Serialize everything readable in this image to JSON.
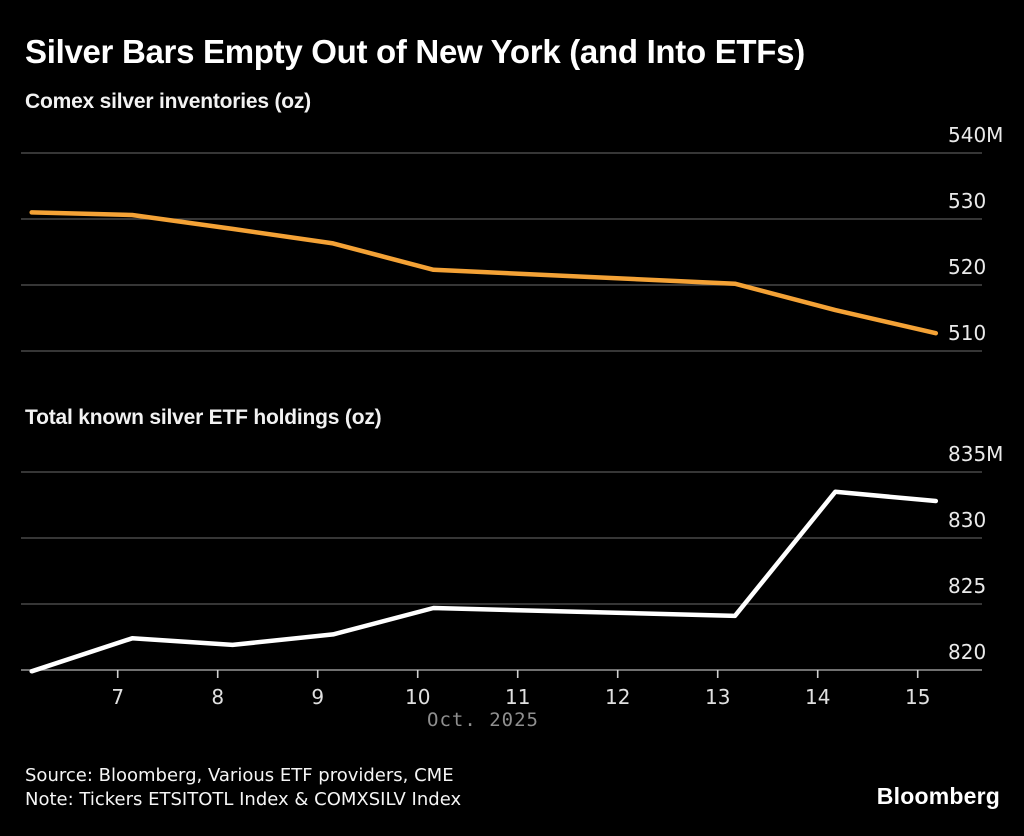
{
  "header": {
    "title": "Silver Bars Empty Out of New York (and Into ETFs)"
  },
  "colors": {
    "background": "#000000",
    "comex_line": "#F4A236",
    "etf_line": "#FFFFFF",
    "gridline": "#565656",
    "axis_line": "#969696",
    "tick_mark": "#d0d0d0",
    "y_tick_label": "#eaeaea",
    "x_tick_label": "#e0e0e0",
    "month_label": "#8f8f8f"
  },
  "chart_data": [
    {
      "type": "line",
      "title": "Comex silver inventories (oz)",
      "series": [
        {
          "name": "Comex silver inventories",
          "color": "#F4A236",
          "x": [
            6,
            7,
            8,
            9,
            10,
            13,
            14,
            15
          ],
          "values": [
            531.0,
            530.6,
            528.5,
            526.3,
            522.3,
            520.2,
            516.2,
            512.7
          ]
        }
      ],
      "x_unit": "day of October 2025",
      "value_unit": "million oz",
      "yticks": [
        {
          "value": 540,
          "label": "540M"
        },
        {
          "value": 530,
          "label": "530"
        },
        {
          "value": 520,
          "label": "520"
        },
        {
          "value": 510,
          "label": "510"
        }
      ],
      "ylim": [
        506,
        540
      ],
      "xlim": [
        6,
        15.6
      ],
      "grid": true,
      "legend": "none"
    },
    {
      "type": "line",
      "title": "Total known silver ETF holdings (oz)",
      "series": [
        {
          "name": "Total known silver ETF holdings",
          "color": "#FFFFFF",
          "x": [
            6,
            7,
            8,
            9,
            10,
            13,
            14,
            15
          ],
          "values": [
            819.9,
            822.4,
            821.9,
            822.7,
            824.7,
            824.1,
            833.5,
            832.8
          ]
        }
      ],
      "x_unit": "day of October 2025",
      "value_unit": "million oz",
      "yticks": [
        {
          "value": 835,
          "label": "835M"
        },
        {
          "value": 830,
          "label": "830"
        },
        {
          "value": 825,
          "label": "825"
        },
        {
          "value": 820,
          "label": "820"
        }
      ],
      "xticks": [
        {
          "value": 7,
          "label": "7"
        },
        {
          "value": 8,
          "label": "8"
        },
        {
          "value": 9,
          "label": "9"
        },
        {
          "value": 10,
          "label": "10"
        },
        {
          "value": 11,
          "label": "11"
        },
        {
          "value": 12,
          "label": "12"
        },
        {
          "value": 13,
          "label": "13"
        },
        {
          "value": 14,
          "label": "14"
        },
        {
          "value": 15,
          "label": "15"
        }
      ],
      "xlabel": "Oct. 2025",
      "ylim": [
        820,
        835
      ],
      "xlim": [
        6,
        15.6
      ],
      "grid": true,
      "legend": "none"
    }
  ],
  "footer": {
    "source": "Source: Bloomberg, Various ETF providers, CME",
    "note": "Note: Tickers ETSITOTL Index & COMXSILV Index",
    "logo": "Bloomberg"
  }
}
